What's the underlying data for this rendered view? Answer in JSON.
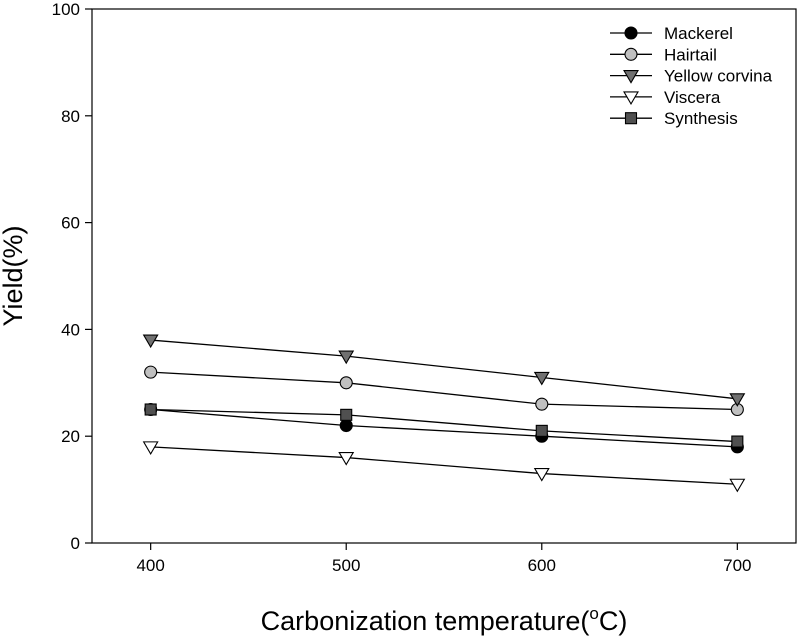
{
  "chart_data": {
    "type": "line",
    "title": "",
    "xlabel": "Carbonization temperature",
    "xlabel_unit_prefix": "(",
    "xlabel_unit_sup": "o",
    "xlabel_unit_rest": "C)",
    "ylabel": "Yield(%)",
    "x": [
      400,
      500,
      600,
      700
    ],
    "x_ticks": [
      "400",
      "500",
      "600",
      "700"
    ],
    "xlim": [
      370,
      730
    ],
    "ylim": [
      0,
      100
    ],
    "y_ticks": [
      "0",
      "20",
      "40",
      "60",
      "80",
      "100"
    ],
    "legend_position": "top-right",
    "series": [
      {
        "name": "Mackerel",
        "values": [
          25,
          22,
          20,
          18
        ],
        "marker": "circle",
        "color": "#000000"
      },
      {
        "name": "Hairtail",
        "values": [
          32,
          30,
          26,
          25
        ],
        "marker": "circle",
        "color": "#c0c0c0"
      },
      {
        "name": "Yellow corvina",
        "values": [
          38,
          35,
          31,
          27
        ],
        "marker": "triangle-down",
        "color": "#707070"
      },
      {
        "name": "Viscera",
        "values": [
          18,
          16,
          13,
          11
        ],
        "marker": "triangle-down",
        "color": "#ffffff"
      },
      {
        "name": "Synthesis",
        "values": [
          25,
          24,
          21,
          19
        ],
        "marker": "square",
        "color": "#505050"
      }
    ]
  }
}
